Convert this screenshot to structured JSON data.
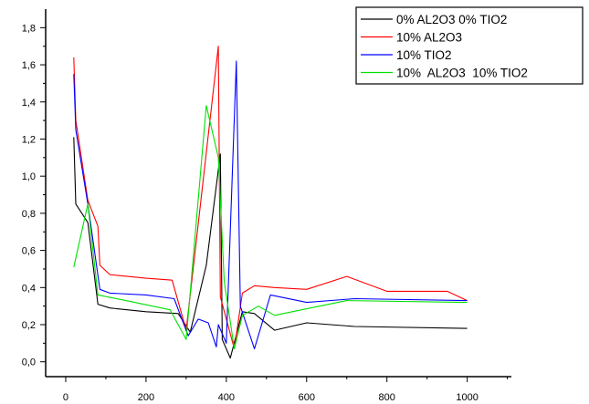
{
  "chart_data": {
    "type": "line",
    "title": "",
    "xlabel": "",
    "ylabel": "",
    "xlim": [
      -50,
      1110
    ],
    "ylim": [
      -0.08,
      1.9
    ],
    "x_ticks": [
      {
        "value": 0,
        "label": "0"
      },
      {
        "value": 200,
        "label": "200"
      },
      {
        "value": 400,
        "label": "400"
      },
      {
        "value": 600,
        "label": "600"
      },
      {
        "value": 800,
        "label": "800"
      },
      {
        "value": 1000,
        "label": "1000"
      }
    ],
    "y_ticks": [
      {
        "value": 0.0,
        "label": "0,0"
      },
      {
        "value": 0.2,
        "label": "0,2"
      },
      {
        "value": 0.4,
        "label": "0,4"
      },
      {
        "value": 0.6,
        "label": "0,6"
      },
      {
        "value": 0.8,
        "label": "0,8"
      },
      {
        "value": 1.0,
        "label": "1,0"
      },
      {
        "value": 1.2,
        "label": "1,2"
      },
      {
        "value": 1.4,
        "label": "1,4"
      },
      {
        "value": 1.6,
        "label": "1,6"
      },
      {
        "value": 1.8,
        "label": "1,8"
      }
    ],
    "grid": false,
    "legend_position": "top-right",
    "series": [
      {
        "name": "0% AL2O3 0% TIO2",
        "color": "#000000",
        "points": [
          [
            20,
            1.21
          ],
          [
            25,
            0.85
          ],
          [
            55,
            0.75
          ],
          [
            80,
            0.31
          ],
          [
            110,
            0.29
          ],
          [
            200,
            0.27
          ],
          [
            280,
            0.26
          ],
          [
            310,
            0.16
          ],
          [
            350,
            0.52
          ],
          [
            385,
            1.12
          ],
          [
            390,
            0.12
          ],
          [
            410,
            0.02
          ],
          [
            440,
            0.27
          ],
          [
            470,
            0.26
          ],
          [
            520,
            0.17
          ],
          [
            600,
            0.21
          ],
          [
            720,
            0.19
          ],
          [
            1000,
            0.18
          ]
        ]
      },
      {
        "name": "10% AL2O3",
        "color": "#ff0000",
        "points": [
          [
            20,
            1.64
          ],
          [
            25,
            1.3
          ],
          [
            55,
            0.87
          ],
          [
            80,
            0.73
          ],
          [
            85,
            0.52
          ],
          [
            110,
            0.47
          ],
          [
            200,
            0.45
          ],
          [
            265,
            0.44
          ],
          [
            300,
            0.17
          ],
          [
            380,
            1.7
          ],
          [
            385,
            0.35
          ],
          [
            420,
            0.07
          ],
          [
            440,
            0.37
          ],
          [
            470,
            0.41
          ],
          [
            520,
            0.4
          ],
          [
            600,
            0.39
          ],
          [
            700,
            0.46
          ],
          [
            800,
            0.38
          ],
          [
            950,
            0.38
          ],
          [
            1000,
            0.33
          ]
        ]
      },
      {
        "name": "10% TIO2",
        "color": "#0000ff",
        "points": [
          [
            20,
            1.55
          ],
          [
            25,
            1.25
          ],
          [
            55,
            0.85
          ],
          [
            85,
            0.39
          ],
          [
            110,
            0.37
          ],
          [
            200,
            0.36
          ],
          [
            270,
            0.34
          ],
          [
            305,
            0.14
          ],
          [
            330,
            0.23
          ],
          [
            355,
            0.21
          ],
          [
            375,
            0.08
          ],
          [
            380,
            0.2
          ],
          [
            400,
            0.1
          ],
          [
            425,
            1.62
          ],
          [
            435,
            0.3
          ],
          [
            470,
            0.07
          ],
          [
            510,
            0.36
          ],
          [
            600,
            0.32
          ],
          [
            720,
            0.34
          ],
          [
            1000,
            0.33
          ]
        ]
      },
      {
        "name": "10%  AL2O3  10% TIO2",
        "color": "#00e000",
        "points": [
          [
            20,
            0.51
          ],
          [
            55,
            0.85
          ],
          [
            80,
            0.36
          ],
          [
            150,
            0.33
          ],
          [
            260,
            0.28
          ],
          [
            300,
            0.12
          ],
          [
            350,
            1.38
          ],
          [
            380,
            1.1
          ],
          [
            395,
            0.43
          ],
          [
            420,
            0.07
          ],
          [
            440,
            0.25
          ],
          [
            480,
            0.3
          ],
          [
            520,
            0.25
          ],
          [
            700,
            0.33
          ],
          [
            1000,
            0.32
          ]
        ]
      }
    ]
  }
}
